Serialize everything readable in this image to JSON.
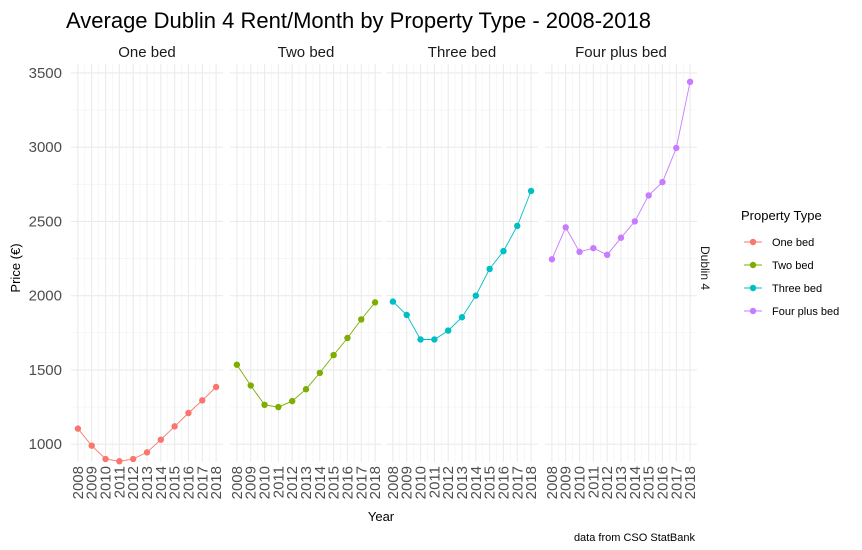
{
  "chart_data": {
    "type": "line",
    "title": "Average Dublin 4 Rent/Month by Property Type - 2008-2018",
    "xlabel": "Year",
    "ylabel": "Price (€)",
    "caption": "data from CSO StatBank",
    "row_facet": "Dublin 4",
    "x": [
      2008,
      2009,
      2010,
      2011,
      2012,
      2013,
      2014,
      2015,
      2016,
      2017,
      2018
    ],
    "x_tick_labels": [
      "2008",
      "2009",
      "2010",
      "2011",
      "2012",
      "2013",
      "2014",
      "2015",
      "2016",
      "2017",
      "2018"
    ],
    "y_ticks": [
      1000,
      1500,
      2000,
      2500,
      3000,
      3500
    ],
    "y_tick_labels": [
      "1000",
      "1500",
      "2000",
      "2500",
      "3000",
      "3500"
    ],
    "ylim": [
      880,
      3560
    ],
    "xlim": [
      2007.5,
      2018.5
    ],
    "grid": true,
    "legend": {
      "title": "Property Type",
      "placement": "right"
    },
    "series": [
      {
        "name": "One bed",
        "color": "#F8766D",
        "values": [
          1105,
          990,
          900,
          885,
          900,
          945,
          1030,
          1120,
          1210,
          1295,
          1385
        ]
      },
      {
        "name": "Two bed",
        "color": "#7CAE00",
        "values": [
          1535,
          1395,
          1265,
          1250,
          1290,
          1370,
          1480,
          1600,
          1715,
          1840,
          1955
        ]
      },
      {
        "name": "Three bed",
        "color": "#00BFC4",
        "values": [
          1960,
          1870,
          1705,
          1705,
          1765,
          1855,
          2000,
          2180,
          2300,
          2470,
          2705
        ]
      },
      {
        "name": "Four plus bed",
        "color": "#C77CFF",
        "values": [
          2245,
          2460,
          2295,
          2320,
          2275,
          2390,
          2500,
          2675,
          2765,
          2995,
          3440
        ]
      }
    ]
  }
}
